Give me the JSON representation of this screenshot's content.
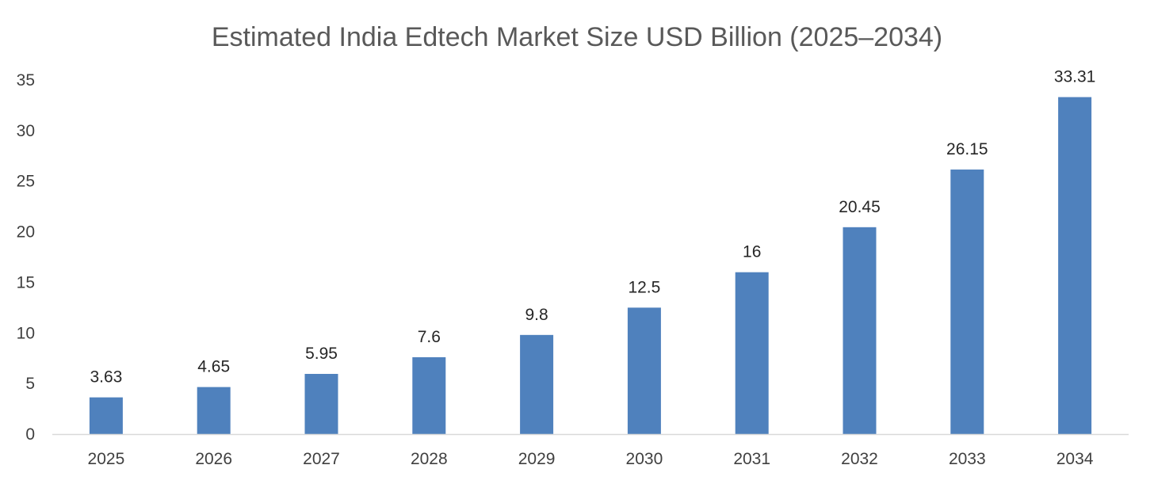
{
  "chart_data": {
    "type": "bar",
    "title": "Estimated India Edtech Market Size USD Billion (2025–2034)",
    "xlabel": "",
    "ylabel": "",
    "categories": [
      "2025",
      "2026",
      "2027",
      "2028",
      "2029",
      "2030",
      "2031",
      "2032",
      "2033",
      "2034"
    ],
    "values": [
      3.63,
      4.65,
      5.95,
      7.6,
      9.8,
      12.5,
      16,
      20.45,
      26.15,
      33.31
    ],
    "data_labels": [
      "3.63",
      "4.65",
      "5.95",
      "7.6",
      "9.8",
      "12.5",
      "16",
      "20.45",
      "26.15",
      "33.31"
    ],
    "y_ticks": [
      "0",
      "5",
      "10",
      "15",
      "20",
      "25",
      "30",
      "35"
    ],
    "ylim": [
      0,
      35
    ],
    "grid": false,
    "legend": "none",
    "bar_color": "#4f81bd",
    "axis_color": "#d9d9d9"
  }
}
